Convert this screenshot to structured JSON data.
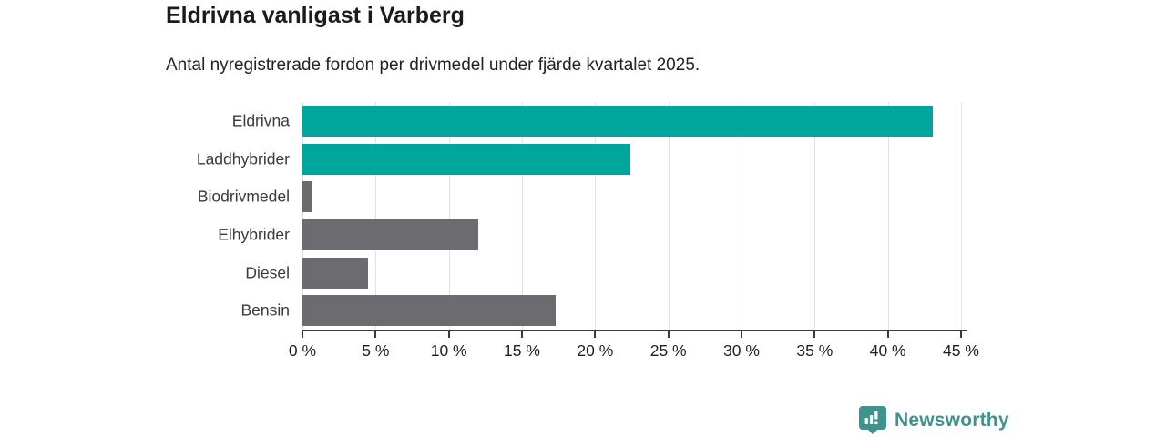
{
  "header": {
    "title": "Eldrivna vanligast i Varberg",
    "subtitle": "Antal nyregistrerade fordon per drivmedel under fjärde kvartalet 2025."
  },
  "chart_data": {
    "type": "bar",
    "orientation": "horizontal",
    "title": "Eldrivna vanligast i Varberg",
    "categories": [
      "Eldrivna",
      "Laddhybrider",
      "Biodrivmedel",
      "Elhybrider",
      "Diesel",
      "Bensin"
    ],
    "values": [
      43.1,
      22.4,
      0.6,
      12.0,
      4.5,
      17.3
    ],
    "unit": "%",
    "bar_colors": [
      "#00a69c",
      "#00a69c",
      "#6b6b70",
      "#6b6b70",
      "#6b6b70",
      "#6b6b70"
    ],
    "xlim": [
      0,
      45
    ],
    "ticks": [
      0,
      5,
      10,
      15,
      20,
      25,
      30,
      35,
      40,
      45
    ],
    "tick_labels": [
      "0 %",
      "5 %",
      "10 %",
      "15 %",
      "20 %",
      "25 %",
      "30 %",
      "35 %",
      "40 %",
      "45 %"
    ],
    "grid": true,
    "legend": "none",
    "xlabel": "",
    "ylabel": ""
  },
  "footer": {
    "brand": "Newsworthy"
  },
  "colors": {
    "electric_accent": "#00a69c",
    "neutral_bar": "#6b6b70",
    "grid": "#e2e2e2",
    "axis": "#3a3a3e",
    "brand_teal": "#3e938c"
  }
}
